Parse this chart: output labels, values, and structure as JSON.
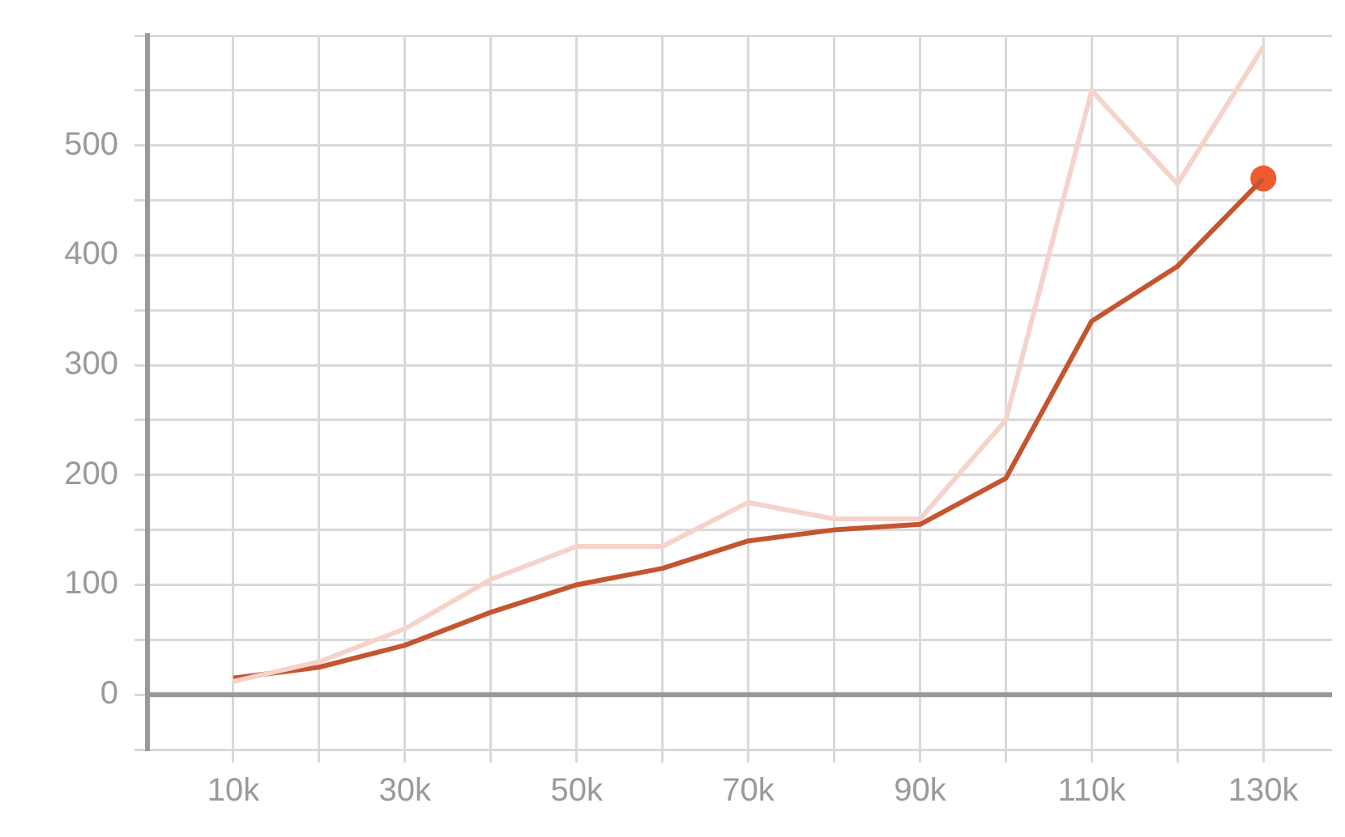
{
  "chart_data": {
    "type": "line",
    "x": [
      10000,
      20000,
      30000,
      40000,
      50000,
      60000,
      70000,
      80000,
      90000,
      100000,
      110000,
      120000,
      130000
    ],
    "series": [
      {
        "color": "#f5d3cb",
        "values": [
          12,
          30,
          60,
          105,
          135,
          135,
          175,
          160,
          160,
          250,
          550,
          465,
          590
        ]
      },
      {
        "color": "#c4552f",
        "values": [
          15,
          25,
          45,
          75,
          100,
          115,
          140,
          150,
          155,
          197,
          340,
          390,
          470
        ]
      },
      {
        "type": "scatter",
        "x": [
          130000
        ],
        "color": "#f05a30",
        "values": [
          470
        ],
        "marker": "circle"
      }
    ],
    "xlim": [
      0,
      138000
    ],
    "xticks": [
      {
        "value": 10000,
        "label": "10k"
      },
      {
        "value": 20000,
        "label": null
      },
      {
        "value": 30000,
        "label": "30k"
      },
      {
        "value": 40000,
        "label": null
      },
      {
        "value": 50000,
        "label": "50k"
      },
      {
        "value": 60000,
        "label": null
      },
      {
        "value": 70000,
        "label": "70k"
      },
      {
        "value": 80000,
        "label": null
      },
      {
        "value": 90000,
        "label": "90k"
      },
      {
        "value": 100000,
        "label": null
      },
      {
        "value": 110000,
        "label": "110k"
      },
      {
        "value": 120000,
        "label": null
      },
      {
        "value": 130000,
        "label": "130k"
      }
    ],
    "ylim": [
      -50,
      600
    ],
    "yticks": [
      {
        "value": -50,
        "label": null
      },
      0,
      {
        "value": 50,
        "label": null
      },
      100,
      {
        "value": 150,
        "label": null
      },
      200,
      {
        "value": 250,
        "label": null
      },
      300,
      {
        "value": 350,
        "label": null
      },
      400,
      {
        "value": 450,
        "label": null
      },
      500,
      {
        "value": 550,
        "label": null
      },
      {
        "value": 600,
        "label": null
      }
    ],
    "ref_lines": [
      {
        "axis": "y",
        "value": 0,
        "color": "#999999"
      }
    ],
    "grid": true,
    "legend": false,
    "marker": "none",
    "line_style": "solid"
  }
}
